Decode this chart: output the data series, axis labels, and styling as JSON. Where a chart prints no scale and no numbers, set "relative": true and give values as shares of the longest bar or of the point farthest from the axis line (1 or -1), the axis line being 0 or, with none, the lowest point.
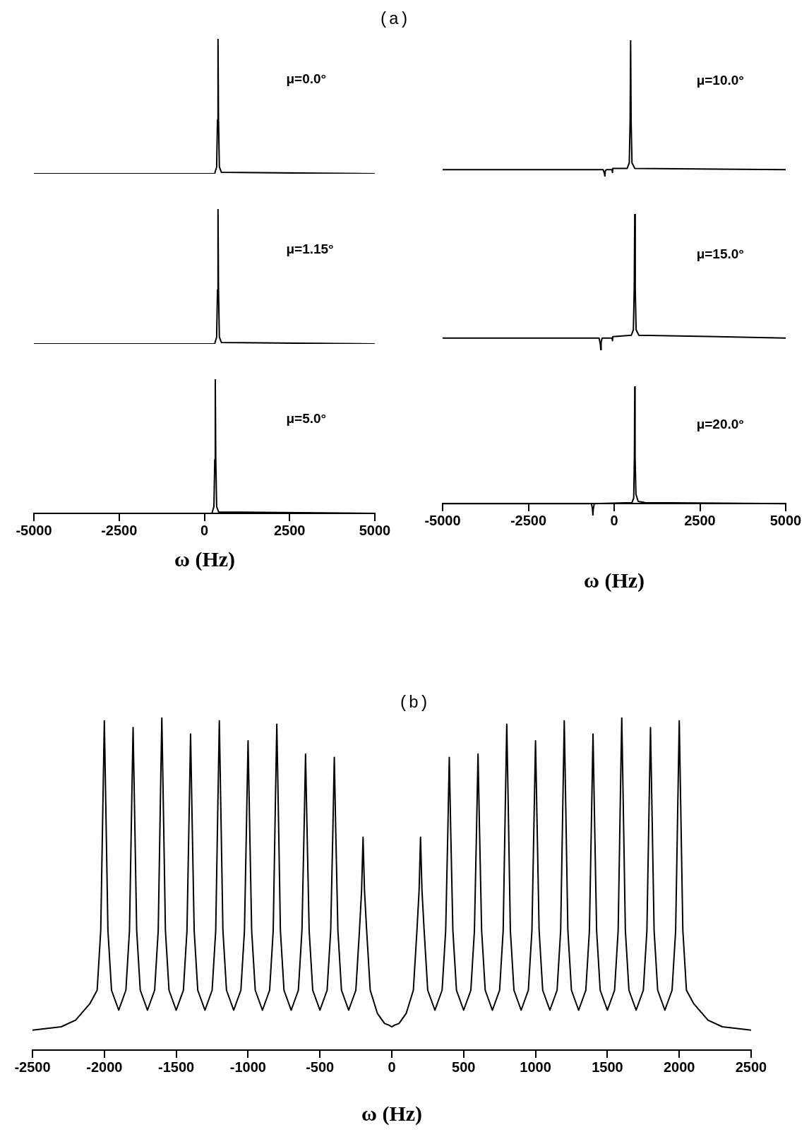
{
  "chart_data": [
    {
      "type": "line",
      "title": "(a)",
      "relative": true,
      "color": "#000000",
      "marker": "none",
      "line_style": "solid",
      "legend": false,
      "grid": false,
      "tick_labels": false,
      "xlim": [
        -5000,
        5000
      ],
      "annotations": [
        "μ=0.0°"
      ],
      "x": [
        -5000,
        300,
        360,
        385,
        400,
        415,
        440,
        500,
        5000
      ],
      "values": [
        0,
        0,
        0.05,
        0.4,
        1,
        0.4,
        0.05,
        0.01,
        0
      ]
    },
    {
      "type": "line",
      "relative": true,
      "color": "#000000",
      "marker": "none",
      "line_style": "solid",
      "legend": false,
      "grid": false,
      "tick_labels": false,
      "xlim": [
        -5000,
        5000
      ],
      "annotations": [
        "μ=1.15°"
      ],
      "x": [
        -5000,
        300,
        360,
        385,
        400,
        415,
        440,
        500,
        5000
      ],
      "values": [
        0,
        0,
        0.05,
        0.4,
        1,
        0.4,
        0.05,
        0.01,
        0
      ]
    },
    {
      "type": "line",
      "relative": true,
      "color": "#000000",
      "marker": "none",
      "line_style": "solid",
      "legend": false,
      "grid": false,
      "tick_labels": "x",
      "xlim": [
        -5000,
        5000
      ],
      "xticks": [
        -5000,
        -2500,
        0,
        2500,
        5000
      ],
      "xlabel": "ω (Hz)",
      "annotations": [
        "μ=5.0°"
      ],
      "x": [
        -5000,
        220,
        280,
        305,
        320,
        335,
        360,
        420,
        5000
      ],
      "values": [
        0,
        0,
        0.05,
        0.4,
        1,
        0.4,
        0.05,
        0.01,
        0
      ]
    },
    {
      "type": "line",
      "relative": true,
      "color": "#000000",
      "marker": "none",
      "line_style": "solid",
      "legend": false,
      "grid": false,
      "tick_labels": false,
      "xlim": [
        -5000,
        5000
      ],
      "annotations": [
        "μ=10.0°"
      ],
      "x": [
        -5000,
        -320,
        -280,
        -270,
        -260,
        -230,
        -60,
        -50,
        -40,
        380,
        440,
        465,
        480,
        495,
        520,
        600,
        5000
      ],
      "values": [
        0.05,
        0.05,
        0.02,
        0,
        0.04,
        0.05,
        0.05,
        0.03,
        0.06,
        0.06,
        0.1,
        0.4,
        1,
        0.4,
        0.1,
        0.06,
        0.05
      ]
    },
    {
      "type": "line",
      "relative": true,
      "color": "#000000",
      "marker": "none",
      "line_style": "solid",
      "legend": false,
      "grid": false,
      "tick_labels": false,
      "xlim": [
        -5000,
        5000
      ],
      "annotations": [
        "μ=15.0°"
      ],
      "x": [
        -5000,
        -440,
        -400,
        -390,
        -380,
        -350,
        -60,
        -50,
        -40,
        500,
        560,
        585,
        600,
        615,
        640,
        720,
        5000
      ],
      "values": [
        0.09,
        0.09,
        0.04,
        0,
        0.06,
        0.09,
        0.09,
        0.07,
        0.1,
        0.11,
        0.15,
        0.45,
        1,
        0.45,
        0.15,
        0.11,
        0.09
      ]
    },
    {
      "type": "line",
      "relative": true,
      "color": "#000000",
      "marker": "none",
      "line_style": "solid",
      "legend": false,
      "grid": false,
      "tick_labels": "x",
      "xlim": [
        -5000,
        5000
      ],
      "xticks": [
        -5000,
        -2500,
        0,
        2500,
        5000
      ],
      "xlabel": "ω (Hz)",
      "annotations": [
        "μ=20.0°"
      ],
      "x": [
        -5000,
        -660,
        -630,
        -620,
        -610,
        -580,
        520,
        570,
        590,
        600,
        610,
        635,
        700,
        900,
        5000
      ],
      "values": [
        0,
        0,
        -0.05,
        -0.1,
        -0.05,
        0,
        0.01,
        0.05,
        0.4,
        1,
        0.4,
        0.08,
        0.02,
        0.01,
        0
      ]
    },
    {
      "type": "line",
      "title": "(b)",
      "relative": true,
      "color": "#000000",
      "marker": "none",
      "line_style": "solid",
      "legend": false,
      "grid": false,
      "tick_labels": "x",
      "xlim": [
        -2500,
        2500
      ],
      "xticks": [
        -2500,
        -2000,
        -1500,
        -1000,
        -500,
        0,
        500,
        1000,
        1500,
        2000,
        2500
      ],
      "xlabel": "ω (Hz)",
      "x": [
        -2500,
        -2300,
        -2200,
        -2100,
        -2050,
        -2025,
        -2010,
        -2000,
        -1990,
        -1975,
        -1950,
        -1900,
        -1850,
        -1825,
        -1810,
        -1800,
        -1790,
        -1775,
        -1750,
        -1700,
        -1650,
        -1625,
        -1610,
        -1600,
        -1590,
        -1575,
        -1550,
        -1500,
        -1450,
        -1425,
        -1410,
        -1400,
        -1390,
        -1375,
        -1350,
        -1300,
        -1250,
        -1225,
        -1210,
        -1200,
        -1190,
        -1175,
        -1150,
        -1100,
        -1050,
        -1025,
        -1010,
        -1000,
        -990,
        -975,
        -950,
        -900,
        -850,
        -825,
        -810,
        -800,
        -790,
        -775,
        -750,
        -700,
        -650,
        -625,
        -610,
        -600,
        -590,
        -575,
        -550,
        -500,
        -450,
        -425,
        -410,
        -400,
        -390,
        -375,
        -350,
        -300,
        -250,
        -225,
        -210,
        -200,
        -190,
        -175,
        -150,
        -100,
        -50,
        -20,
        0,
        20,
        50,
        100,
        150,
        175,
        190,
        200,
        210,
        225,
        250,
        300,
        350,
        375,
        390,
        400,
        410,
        425,
        450,
        500,
        550,
        575,
        590,
        600,
        610,
        625,
        650,
        700,
        750,
        775,
        790,
        800,
        810,
        825,
        850,
        900,
        950,
        975,
        990,
        1000,
        1010,
        1025,
        1050,
        1100,
        1150,
        1175,
        1190,
        1200,
        1210,
        1225,
        1250,
        1300,
        1350,
        1375,
        1390,
        1400,
        1410,
        1425,
        1450,
        1500,
        1550,
        1575,
        1590,
        1600,
        1610,
        1625,
        1650,
        1700,
        1750,
        1775,
        1790,
        1800,
        1810,
        1825,
        1850,
        1900,
        1950,
        1975,
        1990,
        2000,
        2010,
        2025,
        2050,
        2100,
        2200,
        2300,
        2500
      ],
      "values": [
        0.06,
        0.07,
        0.09,
        0.14,
        0.18,
        0.36,
        0.74,
        0.99,
        0.74,
        0.36,
        0.18,
        0.12,
        0.18,
        0.36,
        0.73,
        0.97,
        0.73,
        0.36,
        0.18,
        0.12,
        0.18,
        0.36,
        0.75,
        1,
        0.75,
        0.36,
        0.18,
        0.12,
        0.18,
        0.36,
        0.71,
        0.95,
        0.71,
        0.36,
        0.18,
        0.12,
        0.18,
        0.36,
        0.74,
        0.99,
        0.74,
        0.36,
        0.18,
        0.12,
        0.18,
        0.36,
        0.7,
        0.93,
        0.7,
        0.36,
        0.18,
        0.12,
        0.18,
        0.36,
        0.74,
        0.98,
        0.74,
        0.36,
        0.18,
        0.12,
        0.18,
        0.36,
        0.67,
        0.89,
        0.67,
        0.36,
        0.18,
        0.12,
        0.18,
        0.36,
        0.66,
        0.88,
        0.66,
        0.36,
        0.18,
        0.12,
        0.18,
        0.36,
        0.48,
        0.64,
        0.48,
        0.36,
        0.18,
        0.11,
        0.08,
        0.075,
        0.07,
        0.075,
        0.08,
        0.11,
        0.18,
        0.36,
        0.48,
        0.64,
        0.48,
        0.36,
        0.18,
        0.12,
        0.18,
        0.36,
        0.66,
        0.88,
        0.66,
        0.36,
        0.18,
        0.12,
        0.18,
        0.36,
        0.67,
        0.89,
        0.67,
        0.36,
        0.18,
        0.12,
        0.18,
        0.36,
        0.74,
        0.98,
        0.74,
        0.36,
        0.18,
        0.12,
        0.18,
        0.36,
        0.7,
        0.93,
        0.7,
        0.36,
        0.18,
        0.12,
        0.18,
        0.36,
        0.74,
        0.99,
        0.74,
        0.36,
        0.18,
        0.12,
        0.18,
        0.36,
        0.71,
        0.95,
        0.71,
        0.36,
        0.18,
        0.12,
        0.18,
        0.36,
        0.75,
        1,
        0.75,
        0.36,
        0.18,
        0.12,
        0.18,
        0.36,
        0.73,
        0.97,
        0.73,
        0.36,
        0.18,
        0.12,
        0.18,
        0.36,
        0.74,
        0.99,
        0.74,
        0.36,
        0.18,
        0.14,
        0.09,
        0.07,
        0.06
      ]
    }
  ]
}
